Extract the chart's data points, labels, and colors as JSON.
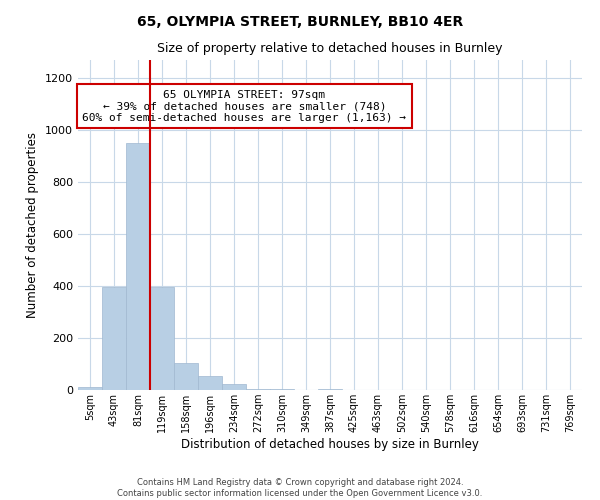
{
  "title1": "65, OLYMPIA STREET, BURNLEY, BB10 4ER",
  "title2": "Size of property relative to detached houses in Burnley",
  "xlabel": "Distribution of detached houses by size in Burnley",
  "ylabel": "Number of detached properties",
  "annotation_line1": "65 OLYMPIA STREET: 97sqm",
  "annotation_line2": "← 39% of detached houses are smaller (748)",
  "annotation_line3": "60% of semi-detached houses are larger (1,163) →",
  "footer1": "Contains HM Land Registry data © Crown copyright and database right 2024.",
  "footer2": "Contains public sector information licensed under the Open Government Licence v3.0.",
  "bar_color": "#b8cfe4",
  "bar_edge_color": "#a0b8d0",
  "property_line_color": "#cc0000",
  "annotation_box_color": "#cc0000",
  "background_color": "#ffffff",
  "grid_color": "#c8d8e8",
  "categories": [
    "5sqm",
    "43sqm",
    "81sqm",
    "119sqm",
    "158sqm",
    "196sqm",
    "234sqm",
    "272sqm",
    "310sqm",
    "349sqm",
    "387sqm",
    "425sqm",
    "463sqm",
    "502sqm",
    "540sqm",
    "578sqm",
    "616sqm",
    "654sqm",
    "693sqm",
    "731sqm",
    "769sqm"
  ],
  "values": [
    10,
    395,
    950,
    395,
    105,
    52,
    22,
    5,
    5,
    0,
    5,
    0,
    0,
    0,
    0,
    0,
    0,
    0,
    0,
    0,
    0
  ],
  "ylim": [
    0,
    1270
  ],
  "property_line_x": 2.5,
  "figsize": [
    6.0,
    5.0
  ],
  "dpi": 100
}
